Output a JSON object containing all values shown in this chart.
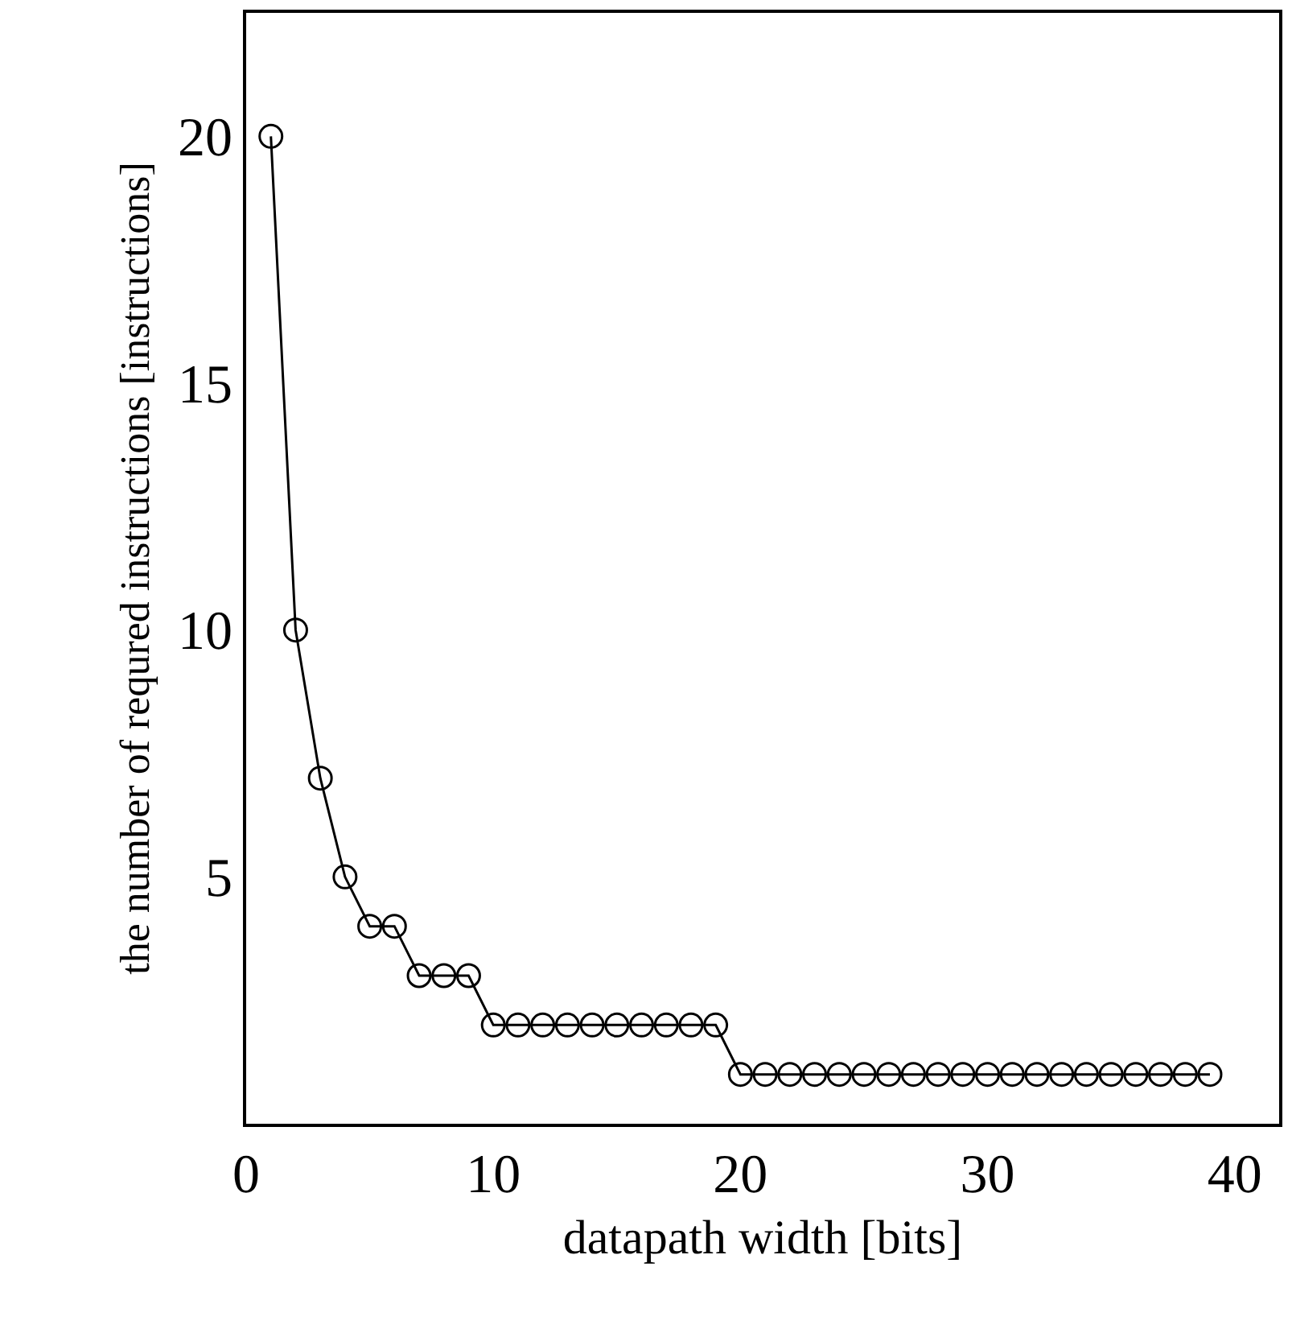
{
  "chart_data": {
    "type": "line",
    "xlabel": "datapath width [bits]",
    "ylabel": "the number of requred instructions [instructions]",
    "x": [
      1,
      2,
      3,
      4,
      5,
      6,
      7,
      8,
      9,
      10,
      11,
      12,
      13,
      14,
      15,
      16,
      17,
      18,
      19,
      20,
      21,
      22,
      23,
      24,
      25,
      26,
      27,
      28,
      29,
      30,
      31,
      32,
      33,
      34,
      35,
      36,
      37,
      38,
      39
    ],
    "values": [
      20,
      10,
      7,
      5,
      4,
      4,
      3,
      3,
      3,
      2,
      2,
      2,
      2,
      2,
      2,
      2,
      2,
      2,
      2,
      1,
      1,
      1,
      1,
      1,
      1,
      1,
      1,
      1,
      1,
      1,
      1,
      1,
      1,
      1,
      1,
      1,
      1,
      1,
      1
    ],
    "color": "#000000",
    "marker": "circle",
    "line_style": "solid",
    "grid": false,
    "legend": false,
    "xlim": [
      0,
      41.8
    ],
    "xticks": [
      0,
      10,
      20,
      30,
      40
    ],
    "ylim": [
      0,
      22.5
    ],
    "yticks": [
      5,
      10,
      15,
      20
    ]
  }
}
